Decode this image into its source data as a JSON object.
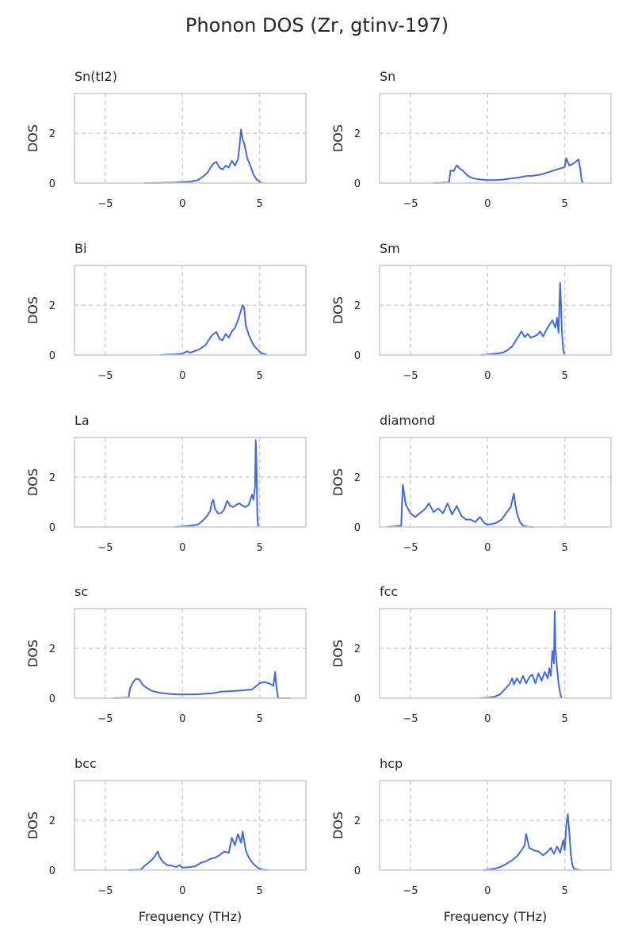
{
  "title": "Phonon DOS (Zr, gtinv-197)",
  "colors": {
    "line": "#4169e1",
    "grid": "#cccccc",
    "frame": "#cccccc"
  },
  "chart_data": [
    {
      "type": "line",
      "title": "Sn(tI2)",
      "xlabel": "",
      "ylabel": "DOS",
      "xlim": [
        -7,
        8
      ],
      "ylim": [
        0,
        3.6
      ],
      "xticks": [
        -5,
        0,
        5
      ],
      "yticks": [
        0,
        2
      ],
      "grid": true,
      "series": [
        {
          "x": [
            -2.5,
            -1.5,
            -0.5,
            0,
            0.5,
            1.0,
            1.3,
            1.6,
            1.8,
            2.0,
            2.2,
            2.4,
            2.6,
            2.8,
            3.0,
            3.2,
            3.4,
            3.6,
            3.7,
            3.8,
            3.9,
            4.0,
            4.1,
            4.2,
            4.4,
            4.6,
            4.8,
            5.0,
            5.2
          ],
          "y": [
            0,
            0.01,
            0.02,
            0.04,
            0.05,
            0.12,
            0.25,
            0.4,
            0.6,
            0.78,
            0.85,
            0.62,
            0.55,
            0.7,
            0.62,
            0.9,
            0.7,
            0.95,
            1.5,
            2.15,
            1.75,
            1.6,
            1.3,
            1.0,
            0.7,
            0.35,
            0.15,
            0.05,
            0
          ]
        }
      ]
    },
    {
      "type": "line",
      "title": "Sn",
      "xlabel": "",
      "ylabel": "DOS",
      "xlim": [
        -7,
        8
      ],
      "ylim": [
        0,
        3.6
      ],
      "xticks": [
        -5,
        0,
        5
      ],
      "yticks": [
        0,
        2
      ],
      "grid": true,
      "series": [
        {
          "x": [
            -3.5,
            -2.5,
            -2.4,
            -2.2,
            -2.0,
            -1.8,
            -1.6,
            -1.3,
            -1.0,
            -0.6,
            0,
            0.5,
            1.0,
            1.5,
            2.0,
            2.5,
            3.0,
            3.5,
            4.0,
            4.5,
            4.8,
            5.0,
            5.1,
            5.3,
            5.6,
            5.9,
            6.0,
            6.1,
            6.2
          ],
          "y": [
            0,
            0.02,
            0.5,
            0.48,
            0.72,
            0.58,
            0.5,
            0.3,
            0.2,
            0.15,
            0.12,
            0.12,
            0.14,
            0.18,
            0.22,
            0.28,
            0.3,
            0.35,
            0.45,
            0.55,
            0.6,
            0.65,
            1.0,
            0.7,
            0.8,
            0.95,
            0.6,
            0.1,
            0
          ]
        }
      ]
    },
    {
      "type": "line",
      "title": "Bi",
      "xlabel": "",
      "ylabel": "DOS",
      "xlim": [
        -7,
        8
      ],
      "ylim": [
        0,
        3.6
      ],
      "xticks": [
        -5,
        0,
        5
      ],
      "yticks": [
        0,
        2
      ],
      "grid": true,
      "series": [
        {
          "x": [
            -1.5,
            -1.0,
            -0.5,
            0,
            0.3,
            0.5,
            1.0,
            1.5,
            1.8,
            2.0,
            2.2,
            2.4,
            2.6,
            2.8,
            3.0,
            3.2,
            3.4,
            3.6,
            3.8,
            3.9,
            4.0,
            4.1,
            4.3,
            4.6,
            4.9,
            5.1,
            5.5
          ],
          "y": [
            0,
            0.02,
            0.03,
            0.05,
            0.15,
            0.1,
            0.2,
            0.4,
            0.7,
            0.85,
            0.92,
            0.65,
            0.6,
            0.85,
            0.7,
            0.95,
            1.1,
            1.4,
            1.8,
            2.0,
            1.9,
            1.2,
            0.8,
            0.4,
            0.2,
            0.08,
            0
          ]
        }
      ]
    },
    {
      "type": "line",
      "title": "Sm",
      "xlabel": "",
      "ylabel": "DOS",
      "xlim": [
        -7,
        8
      ],
      "ylim": [
        0,
        3.6
      ],
      "xticks": [
        -5,
        0,
        5
      ],
      "yticks": [
        0,
        2
      ],
      "grid": true,
      "series": [
        {
          "x": [
            -0.5,
            0,
            0.5,
            1.0,
            1.3,
            1.6,
            1.8,
            2.0,
            2.2,
            2.4,
            2.6,
            2.8,
            3.0,
            3.2,
            3.4,
            3.6,
            3.8,
            4.0,
            4.2,
            4.4,
            4.5,
            4.6,
            4.7,
            4.75,
            4.8,
            4.85,
            4.9,
            5.0
          ],
          "y": [
            0,
            0.02,
            0.05,
            0.1,
            0.2,
            0.35,
            0.55,
            0.75,
            0.95,
            0.72,
            0.85,
            0.7,
            0.75,
            0.8,
            0.95,
            0.75,
            1.0,
            1.2,
            1.4,
            1.1,
            1.5,
            0.9,
            2.9,
            2.2,
            1.2,
            0.6,
            0.2,
            0
          ]
        }
      ]
    },
    {
      "type": "line",
      "title": "La",
      "xlabel": "",
      "ylabel": "DOS",
      "xlim": [
        -7,
        8
      ],
      "ylim": [
        0,
        3.6
      ],
      "xticks": [
        -5,
        0,
        5
      ],
      "yticks": [
        0,
        2
      ],
      "grid": true,
      "series": [
        {
          "x": [
            -0.5,
            0,
            0.5,
            1.0,
            1.3,
            1.6,
            1.8,
            1.9,
            2.0,
            2.1,
            2.3,
            2.5,
            2.7,
            2.9,
            3.1,
            3.3,
            3.5,
            3.7,
            3.9,
            4.1,
            4.3,
            4.5,
            4.6,
            4.7,
            4.75,
            4.8,
            4.85,
            4.9
          ],
          "y": [
            0,
            0.02,
            0.05,
            0.1,
            0.25,
            0.45,
            0.65,
            1.0,
            1.1,
            0.75,
            0.55,
            0.55,
            0.7,
            1.05,
            0.85,
            0.8,
            0.9,
            0.95,
            0.85,
            0.8,
            0.9,
            1.3,
            1.1,
            1.6,
            3.5,
            2.5,
            0.5,
            0
          ]
        }
      ]
    },
    {
      "type": "line",
      "title": "diamond",
      "xlabel": "",
      "ylabel": "DOS",
      "xlim": [
        -7,
        8
      ],
      "ylim": [
        0,
        3.6
      ],
      "xticks": [
        -5,
        0,
        5
      ],
      "yticks": [
        0,
        2
      ],
      "grid": true,
      "series": [
        {
          "x": [
            -6.5,
            -5.6,
            -5.5,
            -5.3,
            -5.0,
            -4.7,
            -4.4,
            -4.1,
            -3.8,
            -3.5,
            -3.2,
            -2.9,
            -2.6,
            -2.3,
            -2.0,
            -1.7,
            -1.4,
            -1.1,
            -0.8,
            -0.5,
            -0.2,
            0,
            0.3,
            0.6,
            0.9,
            1.2,
            1.5,
            1.7,
            1.8,
            1.9,
            2.1,
            2.3,
            2.6,
            3.0
          ],
          "y": [
            0,
            0.05,
            1.7,
            0.9,
            0.55,
            0.4,
            0.55,
            0.7,
            0.95,
            0.6,
            0.75,
            0.55,
            0.95,
            0.5,
            0.85,
            0.45,
            0.3,
            0.3,
            0.2,
            0.4,
            0.15,
            0.1,
            0.12,
            0.18,
            0.3,
            0.55,
            0.8,
            1.35,
            0.9,
            0.55,
            0.2,
            0.05,
            0.01,
            0
          ]
        }
      ]
    },
    {
      "type": "line",
      "title": "sc",
      "xlabel": "",
      "ylabel": "DOS",
      "xlim": [
        -7,
        8
      ],
      "ylim": [
        0,
        3.6
      ],
      "xticks": [
        -5,
        0,
        5
      ],
      "yticks": [
        0,
        2
      ],
      "grid": true,
      "series": [
        {
          "x": [
            -4.5,
            -3.5,
            -3.4,
            -3.2,
            -3.0,
            -2.8,
            -2.6,
            -2.3,
            -2.0,
            -1.5,
            -1.0,
            -0.5,
            0,
            0.5,
            1.0,
            1.5,
            2.0,
            2.5,
            3.0,
            3.5,
            4.0,
            4.5,
            4.7,
            5.0,
            5.3,
            5.6,
            5.9,
            6.0,
            6.1,
            6.2,
            7.0
          ],
          "y": [
            0,
            0.02,
            0.4,
            0.65,
            0.78,
            0.75,
            0.55,
            0.4,
            0.3,
            0.22,
            0.18,
            0.16,
            0.15,
            0.15,
            0.16,
            0.18,
            0.2,
            0.26,
            0.28,
            0.3,
            0.32,
            0.35,
            0.45,
            0.6,
            0.65,
            0.6,
            0.5,
            1.05,
            0.4,
            0,
            0
          ]
        }
      ]
    },
    {
      "type": "line",
      "title": "fcc",
      "xlabel": "",
      "ylabel": "DOS",
      "xlim": [
        -7,
        8
      ],
      "ylim": [
        0,
        3.6
      ],
      "xticks": [
        -5,
        0,
        5
      ],
      "yticks": [
        0,
        2
      ],
      "grid": true,
      "series": [
        {
          "x": [
            -0.5,
            0,
            0.4,
            0.8,
            1.1,
            1.4,
            1.6,
            1.7,
            1.9,
            2.1,
            2.3,
            2.5,
            2.7,
            2.9,
            3.1,
            3.3,
            3.5,
            3.7,
            3.9,
            4.0,
            4.1,
            4.2,
            4.3,
            4.35,
            4.4,
            4.5,
            4.6,
            4.7,
            4.8
          ],
          "y": [
            0,
            0.02,
            0.05,
            0.15,
            0.35,
            0.55,
            0.8,
            0.55,
            0.8,
            0.6,
            0.9,
            0.6,
            0.85,
            0.95,
            0.6,
            1.0,
            0.7,
            1.05,
            0.8,
            1.2,
            0.9,
            1.9,
            1.4,
            3.5,
            2.0,
            1.2,
            0.6,
            0.2,
            0
          ]
        }
      ]
    },
    {
      "type": "line",
      "title": "bcc",
      "xlabel": "Frequency (THz)",
      "ylabel": "DOS",
      "xlim": [
        -7,
        8
      ],
      "ylim": [
        0,
        3.6
      ],
      "xticks": [
        -5,
        0,
        5
      ],
      "yticks": [
        0,
        2
      ],
      "grid": true,
      "series": [
        {
          "x": [
            -3.5,
            -2.7,
            -2.5,
            -2.2,
            -2.0,
            -1.8,
            -1.6,
            -1.5,
            -1.3,
            -1.0,
            -0.7,
            -0.4,
            -0.2,
            0,
            0.4,
            0.8,
            1.2,
            1.5,
            1.8,
            2.1,
            2.4,
            2.7,
            3.0,
            3.2,
            3.4,
            3.6,
            3.8,
            3.9,
            4.0,
            4.1,
            4.3,
            4.6,
            4.9,
            5.2,
            5.6
          ],
          "y": [
            0,
            0.02,
            0.15,
            0.3,
            0.4,
            0.55,
            0.75,
            0.55,
            0.35,
            0.2,
            0.18,
            0.12,
            0.2,
            0.1,
            0.12,
            0.15,
            0.3,
            0.35,
            0.45,
            0.5,
            0.6,
            0.75,
            0.7,
            1.3,
            1.0,
            1.45,
            1.1,
            1.55,
            1.2,
            0.8,
            0.5,
            0.25,
            0.08,
            0.02,
            0
          ]
        }
      ]
    },
    {
      "type": "line",
      "title": "hcp",
      "xlabel": "Frequency (THz)",
      "ylabel": "DOS",
      "xlim": [
        -7,
        8
      ],
      "ylim": [
        0,
        3.6
      ],
      "xticks": [
        -5,
        0,
        5
      ],
      "yticks": [
        0,
        2
      ],
      "grid": true,
      "series": [
        {
          "x": [
            -0.3,
            0,
            0.4,
            0.8,
            1.2,
            1.6,
            1.9,
            2.2,
            2.4,
            2.5,
            2.7,
            3.0,
            3.3,
            3.6,
            3.9,
            4.1,
            4.3,
            4.5,
            4.7,
            4.9,
            5.0,
            5.1,
            5.2,
            5.3,
            5.4,
            5.5,
            5.6,
            6.0
          ],
          "y": [
            0,
            0.02,
            0.05,
            0.12,
            0.25,
            0.4,
            0.55,
            0.8,
            1.0,
            1.45,
            0.9,
            0.8,
            0.75,
            0.6,
            0.75,
            0.9,
            0.65,
            0.95,
            0.7,
            1.2,
            0.8,
            1.8,
            2.25,
            1.5,
            0.6,
            0.2,
            0.05,
            0
          ]
        }
      ]
    }
  ]
}
